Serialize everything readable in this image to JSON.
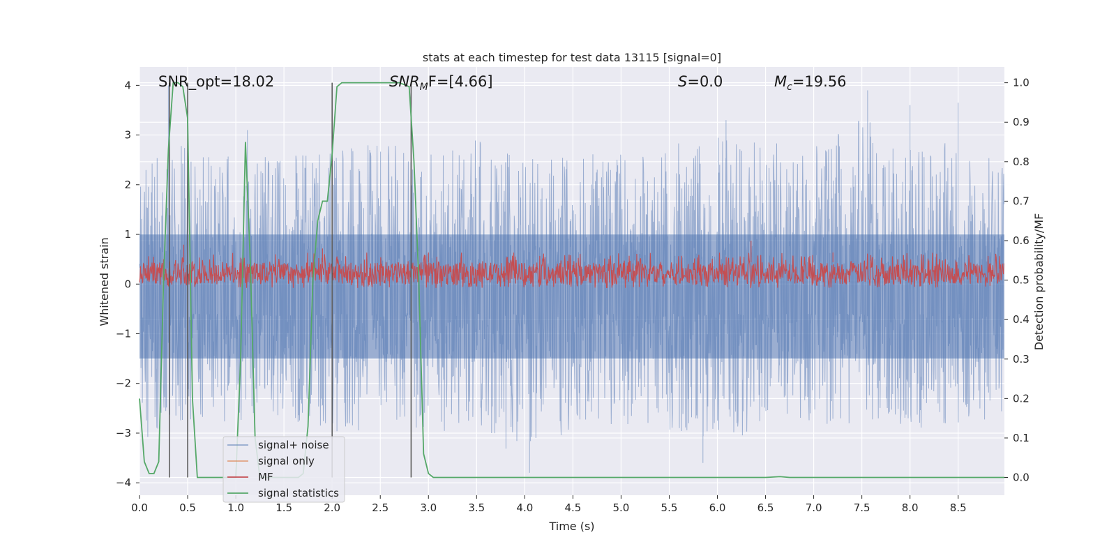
{
  "chart_data": {
    "type": "line",
    "title": "stats at each timestep for test data 13115 [signal=0]",
    "xlabel": "Time (s)",
    "ylabel": "Whitened strain",
    "ylabel_right": "Detection probability/MF",
    "xlim": [
      0,
      8.98
    ],
    "ylim": [
      -4.25,
      4.37
    ],
    "ylim_right": [
      -0.045,
      1.04
    ],
    "x_ticks": [
      0.0,
      0.5,
      1.0,
      1.5,
      2.0,
      2.5,
      3.0,
      3.5,
      4.0,
      4.5,
      5.0,
      5.5,
      6.0,
      6.5,
      7.0,
      7.5,
      8.0,
      8.5
    ],
    "x_tick_labels": [
      "0.0",
      "0.5",
      "1.0",
      "1.5",
      "2.0",
      "2.5",
      "3.0",
      "3.5",
      "4.0",
      "4.5",
      "5.0",
      "5.5",
      "6.0",
      "6.5",
      "7.0",
      "7.5",
      "8.0",
      "8.5"
    ],
    "y_ticks": [
      4,
      3,
      2,
      1,
      0,
      -1,
      -2,
      -3,
      -4
    ],
    "y_tick_labels": [
      "4",
      "3",
      "2",
      "1",
      "0",
      "−1",
      "−2",
      "−3",
      "−4"
    ],
    "y_right_ticks": [
      1.0,
      0.9,
      0.8,
      0.7,
      0.6,
      0.5,
      0.4,
      0.3,
      0.2,
      0.1,
      0.0
    ],
    "y_right_tick_labels": [
      "1.0",
      "0.9",
      "0.8",
      "0.7",
      "0.6",
      "0.5",
      "0.4",
      "0.3",
      "0.2",
      "0.1",
      "0.0"
    ],
    "grid": true,
    "legend_position": "lower-left",
    "annotations": {
      "snr_opt": "SNR_opt=18.02",
      "snr_mf": "SNR",
      "snr_mf_sub": "M",
      "snr_mf_rest": "F=[4.66]",
      "s_label": "S",
      "s_value": "=0.0",
      "mc_label": "M",
      "mc_sub": "c",
      "mc_value": "=19.56"
    },
    "series": [
      {
        "name": "signal+ noise",
        "color": "#4c72b0",
        "axis": "left",
        "envelope": {
          "x": [
            0.0,
            0.3,
            0.6,
            1.0,
            1.5,
            2.0,
            2.5,
            3.0,
            3.5,
            4.0,
            4.5,
            5.0,
            5.5,
            6.0,
            6.5,
            7.0,
            7.5,
            8.0,
            8.5,
            8.98
          ],
          "upper": [
            2.3,
            2.7,
            2.9,
            2.6,
            2.6,
            2.8,
            2.9,
            2.8,
            2.9,
            2.6,
            2.6,
            2.7,
            2.8,
            3.0,
            2.9,
            2.8,
            3.4,
            2.8,
            2.9,
            2.6
          ],
          "lower": [
            -3.4,
            -2.7,
            -2.9,
            -2.8,
            -2.7,
            -3.0,
            -2.9,
            -3.0,
            -2.9,
            -3.6,
            -2.9,
            -2.8,
            -3.0,
            -3.5,
            -2.9,
            -2.8,
            -2.9,
            -2.9,
            -3.0,
            -2.6
          ]
        },
        "peaks": [
          [
            0.3,
            4.0
          ],
          [
            1.12,
            3.1
          ],
          [
            7.56,
            3.9
          ],
          [
            8.5,
            3.65
          ],
          [
            8.0,
            3.6
          ],
          [
            6.09,
            3.3
          ],
          [
            4.05,
            -3.8
          ],
          [
            5.85,
            -3.6
          ]
        ]
      },
      {
        "name": "signal only",
        "color": "#dd8452",
        "axis": "left",
        "values": []
      },
      {
        "name": "MF",
        "color": "#c44e52",
        "axis": "right",
        "band": [
          0.49,
          0.545
        ],
        "spikes": [
          [
            0.46,
            0.59
          ],
          [
            1.9,
            0.58
          ],
          [
            3.0,
            0.57
          ],
          [
            6.35,
            0.6
          ],
          [
            7.2,
            0.57
          ]
        ]
      },
      {
        "name": "signal statistics",
        "color": "#55a868",
        "axis": "right",
        "x": [
          0.0,
          0.05,
          0.1,
          0.15,
          0.2,
          0.25,
          0.3,
          0.35,
          0.4,
          0.45,
          0.5,
          0.55,
          0.6,
          0.65,
          0.7,
          0.75,
          0.8,
          0.85,
          0.9,
          0.95,
          1.0,
          1.05,
          1.1,
          1.15,
          1.2,
          1.25,
          1.3,
          1.35,
          1.4,
          1.45,
          1.5,
          1.55,
          1.6,
          1.65,
          1.7,
          1.75,
          1.8,
          1.85,
          1.9,
          1.95,
          2.0,
          2.05,
          2.1,
          2.2,
          2.3,
          2.4,
          2.5,
          2.6,
          2.7,
          2.8,
          2.85,
          2.9,
          2.95,
          3.0,
          3.05,
          3.5,
          4.0,
          5.0,
          6.0,
          6.5,
          6.65,
          6.75,
          7.0,
          8.0,
          8.98
        ],
        "values": [
          0.2,
          0.04,
          0.01,
          0.01,
          0.04,
          0.5,
          0.83,
          1.0,
          1.0,
          0.99,
          0.91,
          0.2,
          0.0,
          0.0,
          0.0,
          0.0,
          0.0,
          0.0,
          0.0,
          0.0,
          0.0,
          0.3,
          0.85,
          0.55,
          0.1,
          0.0,
          0.0,
          0.0,
          0.0,
          0.0,
          0.0,
          0.0,
          0.0,
          0.0,
          0.01,
          0.13,
          0.5,
          0.65,
          0.7,
          0.7,
          0.82,
          0.99,
          1.0,
          1.0,
          1.0,
          1.0,
          1.0,
          1.0,
          1.0,
          0.99,
          0.8,
          0.5,
          0.06,
          0.01,
          0.0,
          0.0,
          0.0,
          0.0,
          0.0,
          0.0,
          0.002,
          0.0,
          0.0,
          0.0,
          0.0
        ]
      }
    ],
    "vlines": [
      0.31,
      0.5,
      2.0,
      2.82
    ]
  }
}
